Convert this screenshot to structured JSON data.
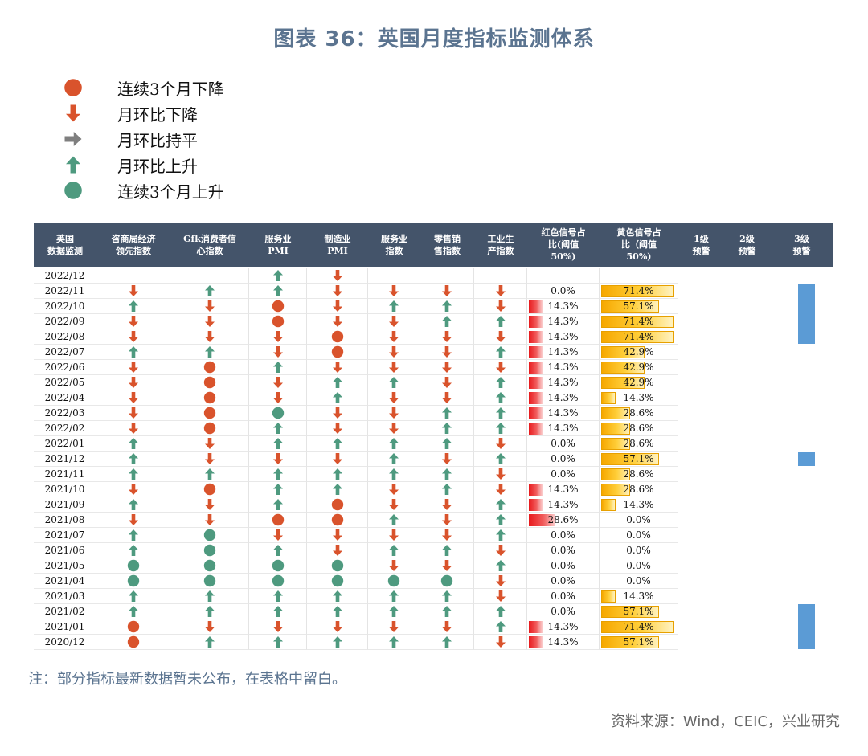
{
  "title": "图表 36：英国月度指标监测体系",
  "legend": [
    {
      "icon": "red-circle-icon",
      "label": "连续3个月下降"
    },
    {
      "icon": "red-down-arrow-icon",
      "label": "月环比下降"
    },
    {
      "icon": "gray-right-arrow-icon",
      "label": "月环比持平"
    },
    {
      "icon": "green-up-arrow-icon",
      "label": "月环比上升"
    },
    {
      "icon": "green-circle-icon",
      "label": "连续3个月上升"
    }
  ],
  "colors": {
    "red": "#d9532c",
    "green": "#4e9a7f",
    "gray": "#7f7f7f",
    "header": "#44546a",
    "warning": "#5b9bd5"
  },
  "headers": [
    "英国\n数据监测",
    "咨商局经济\n领先指数",
    "Gfk消费者信\n心指数",
    "服务业\nPMI",
    "制造业\nPMI",
    "服务业\n指数",
    "零售销\n售指数",
    "工业生\n产指数",
    "红色信号占\n比(阈值\n50%)",
    "黄色信号占\n比（阈值\n50%)",
    "1级\n预警",
    "2级\n预警",
    "3级\n预警"
  ],
  "codes": {
    "u": "月环比上升",
    "d": "月环比下降",
    "f": "月环比持平",
    "R": "连续3个月下降",
    "G": "连续3个月上升"
  },
  "rows": [
    {
      "date": "2022/12",
      "signals": [
        "",
        "",
        "u",
        "d",
        "",
        "",
        ""
      ],
      "red": "",
      "yellow": "",
      "red_share": 0,
      "yellow_share": 0
    },
    {
      "date": "2022/11",
      "signals": [
        "d",
        "u",
        "u",
        "d",
        "d",
        "d",
        "d"
      ],
      "red": "0.0%",
      "yellow": "71.4%",
      "red_share": 0,
      "yellow_share": 0.714
    },
    {
      "date": "2022/10",
      "signals": [
        "u",
        "d",
        "R",
        "d",
        "u",
        "u",
        "d"
      ],
      "red": "14.3%",
      "yellow": "57.1%",
      "red_share": 0.143,
      "yellow_share": 0.571
    },
    {
      "date": "2022/09",
      "signals": [
        "d",
        "d",
        "R",
        "d",
        "d",
        "u",
        "u"
      ],
      "red": "14.3%",
      "yellow": "71.4%",
      "red_share": 0.143,
      "yellow_share": 0.714
    },
    {
      "date": "2022/08",
      "signals": [
        "d",
        "d",
        "d",
        "R",
        "d",
        "d",
        "d"
      ],
      "red": "14.3%",
      "yellow": "71.4%",
      "red_share": 0.143,
      "yellow_share": 0.714
    },
    {
      "date": "2022/07",
      "signals": [
        "u",
        "u",
        "d",
        "R",
        "d",
        "d",
        "u"
      ],
      "red": "14.3%",
      "yellow": "42.9%",
      "red_share": 0.143,
      "yellow_share": 0.429
    },
    {
      "date": "2022/06",
      "signals": [
        "d",
        "R",
        "u",
        "d",
        "d",
        "d",
        "d"
      ],
      "red": "14.3%",
      "yellow": "42.9%",
      "red_share": 0.143,
      "yellow_share": 0.429
    },
    {
      "date": "2022/05",
      "signals": [
        "d",
        "R",
        "d",
        "u",
        "u",
        "d",
        "u"
      ],
      "red": "14.3%",
      "yellow": "42.9%",
      "red_share": 0.143,
      "yellow_share": 0.429
    },
    {
      "date": "2022/04",
      "signals": [
        "d",
        "R",
        "d",
        "u",
        "d",
        "d",
        "u"
      ],
      "red": "14.3%",
      "yellow": "14.3%",
      "red_share": 0.143,
      "yellow_share": 0.143
    },
    {
      "date": "2022/03",
      "signals": [
        "d",
        "R",
        "G",
        "d",
        "d",
        "u",
        "u"
      ],
      "red": "14.3%",
      "yellow": "28.6%",
      "red_share": 0.143,
      "yellow_share": 0.286
    },
    {
      "date": "2022/02",
      "signals": [
        "d",
        "R",
        "u",
        "d",
        "d",
        "u",
        "u"
      ],
      "red": "14.3%",
      "yellow": "28.6%",
      "red_share": 0.143,
      "yellow_share": 0.286
    },
    {
      "date": "2022/01",
      "signals": [
        "u",
        "d",
        "u",
        "u",
        "u",
        "u",
        "d"
      ],
      "red": "0.0%",
      "yellow": "28.6%",
      "red_share": 0,
      "yellow_share": 0.286
    },
    {
      "date": "2021/12",
      "signals": [
        "u",
        "d",
        "d",
        "d",
        "u",
        "d",
        "u"
      ],
      "red": "0.0%",
      "yellow": "57.1%",
      "red_share": 0,
      "yellow_share": 0.571
    },
    {
      "date": "2021/11",
      "signals": [
        "u",
        "u",
        "u",
        "u",
        "u",
        "u",
        "d"
      ],
      "red": "0.0%",
      "yellow": "28.6%",
      "red_share": 0,
      "yellow_share": 0.286
    },
    {
      "date": "2021/10",
      "signals": [
        "d",
        "R",
        "u",
        "u",
        "d",
        "u",
        "d"
      ],
      "red": "14.3%",
      "yellow": "28.6%",
      "red_share": 0.143,
      "yellow_share": 0.286
    },
    {
      "date": "2021/09",
      "signals": [
        "u",
        "d",
        "u",
        "R",
        "d",
        "d",
        "u"
      ],
      "red": "14.3%",
      "yellow": "14.3%",
      "red_share": 0.143,
      "yellow_share": 0.143
    },
    {
      "date": "2021/08",
      "signals": [
        "d",
        "d",
        "R",
        "R",
        "u",
        "d",
        "u"
      ],
      "red": "28.6%",
      "yellow": "0.0%",
      "red_share": 0.286,
      "yellow_share": 0
    },
    {
      "date": "2021/07",
      "signals": [
        "u",
        "G",
        "d",
        "d",
        "d",
        "d",
        "u"
      ],
      "red": "0.0%",
      "yellow": "0.0%",
      "red_share": 0,
      "yellow_share": 0
    },
    {
      "date": "2021/06",
      "signals": [
        "u",
        "G",
        "u",
        "d",
        "u",
        "u",
        "d"
      ],
      "red": "0.0%",
      "yellow": "0.0%",
      "red_share": 0,
      "yellow_share": 0
    },
    {
      "date": "2021/05",
      "signals": [
        "G",
        "G",
        "G",
        "G",
        "d",
        "d",
        "u"
      ],
      "red": "0.0%",
      "yellow": "0.0%",
      "red_share": 0,
      "yellow_share": 0
    },
    {
      "date": "2021/04",
      "signals": [
        "G",
        "G",
        "G",
        "G",
        "G",
        "G",
        "d"
      ],
      "red": "0.0%",
      "yellow": "0.0%",
      "red_share": 0,
      "yellow_share": 0
    },
    {
      "date": "2021/03",
      "signals": [
        "u",
        "u",
        "u",
        "u",
        "u",
        "u",
        "d"
      ],
      "red": "0.0%",
      "yellow": "14.3%",
      "red_share": 0,
      "yellow_share": 0.143
    },
    {
      "date": "2021/02",
      "signals": [
        "u",
        "u",
        "u",
        "u",
        "u",
        "u",
        "u"
      ],
      "red": "0.0%",
      "yellow": "57.1%",
      "red_share": 0,
      "yellow_share": 0.571
    },
    {
      "date": "2021/01",
      "signals": [
        "R",
        "d",
        "d",
        "d",
        "d",
        "d",
        "u"
      ],
      "red": "14.3%",
      "yellow": "71.4%",
      "red_share": 0.143,
      "yellow_share": 0.714
    },
    {
      "date": "2020/12",
      "signals": [
        "R",
        "u",
        "u",
        "u",
        "u",
        "u",
        "d"
      ],
      "red": "14.3%",
      "yellow": "57.1%",
      "red_share": 0.143,
      "yellow_share": 0.571
    }
  ],
  "warnings": [
    {
      "level": 3,
      "from_row": "2022/11",
      "to_row": "2022/08"
    },
    {
      "level": 3,
      "from_row": "2021/12",
      "to_row": "2021/12"
    },
    {
      "level": 3,
      "from_row": "2021/02",
      "to_row": "2020/12"
    }
  ],
  "note": "注：部分指标最新数据暂未公布，在表格中留白。",
  "source": "资料来源：Wind，CEIC，兴业研究"
}
